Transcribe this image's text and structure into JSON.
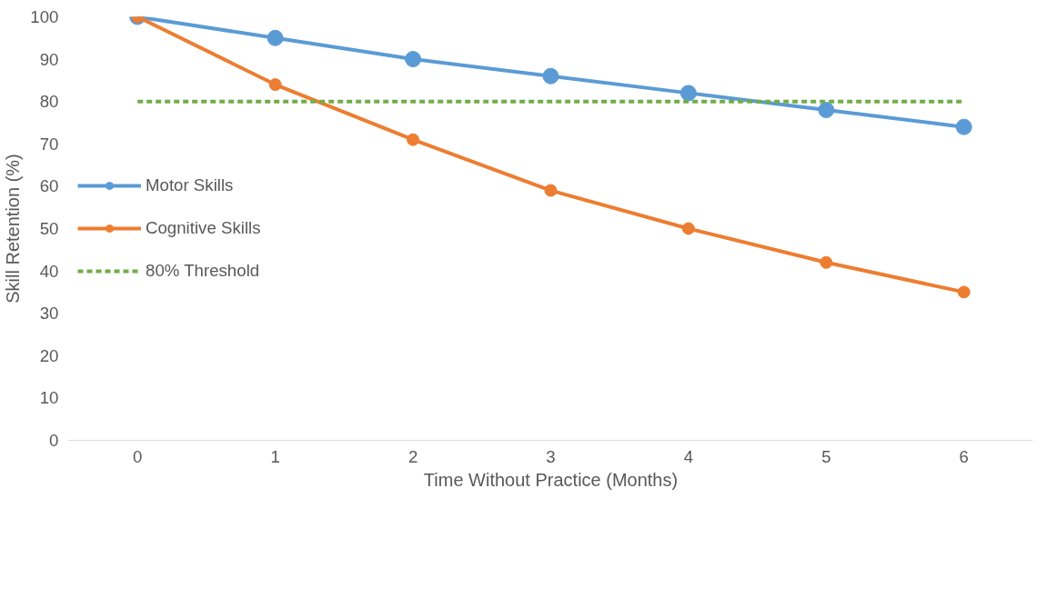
{
  "chart_data": {
    "type": "line",
    "xlabel": "Time Without Practice (Months)",
    "ylabel": "Skill Retention (%)",
    "categories": [
      "0",
      "1",
      "2",
      "3",
      "4",
      "5",
      "6"
    ],
    "series": [
      {
        "name": "Motor Skills",
        "color": "#5b9bd5",
        "values": [
          100,
          95,
          90,
          86,
          82,
          78,
          74
        ],
        "marker": "circle",
        "line_style": "solid"
      },
      {
        "name": "Cognitive Skills",
        "color": "#ed7d31",
        "values": [
          100,
          84,
          71,
          59,
          50,
          42,
          35
        ],
        "marker": "circle",
        "line_style": "solid"
      },
      {
        "name": "80% Threshold",
        "color": "#70ad47",
        "values": [
          80,
          80,
          80,
          80,
          80,
          80,
          80
        ],
        "marker": "none",
        "line_style": "dashed"
      }
    ],
    "ylim": [
      0,
      100
    ],
    "yticks": [
      0,
      10,
      20,
      30,
      40,
      50,
      60,
      70,
      80,
      90,
      100
    ],
    "grid": false,
    "legend": "left"
  }
}
